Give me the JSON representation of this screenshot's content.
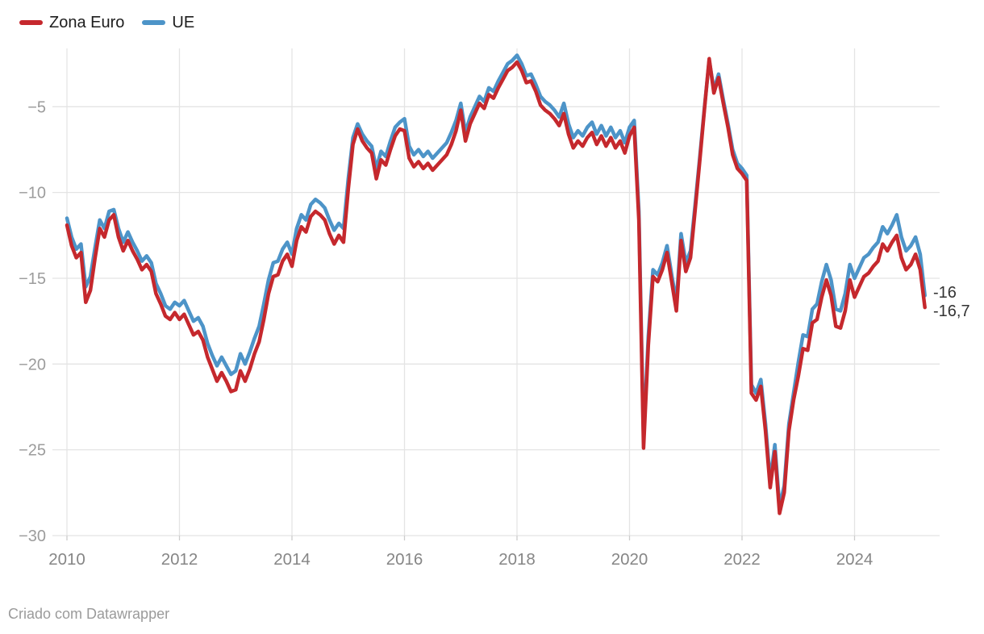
{
  "legend": {
    "items": [
      {
        "label": "Zona Euro",
        "color": "#c5282d"
      },
      {
        "label": "UE",
        "color": "#4d94c8"
      }
    ]
  },
  "attribution": "Criado com Datawrapper",
  "colors": {
    "background": "#ffffff",
    "gridline": "#e4e4e4",
    "axis_tick": "#cccccc",
    "y_tick_label": "#9c9c9c",
    "x_tick_label": "#868686",
    "end_label": "#333333",
    "series_zona_euro": "#c5282d",
    "series_ue": "#4d94c8"
  },
  "chart_data": {
    "type": "line",
    "title": "",
    "xlabel": "",
    "ylabel": "",
    "x_start": "2010-01",
    "x_end": "2025-04",
    "x_frequency": "monthly",
    "grid": "on",
    "legend_position": "top-left",
    "ylim": [
      -30,
      -1.6
    ],
    "y_ticks": [
      {
        "value": -5,
        "label": "−5"
      },
      {
        "value": -10,
        "label": "−10"
      },
      {
        "value": -15,
        "label": "−15"
      },
      {
        "value": -20,
        "label": "−20"
      },
      {
        "value": -25,
        "label": "−25"
      },
      {
        "value": -30,
        "label": "−30"
      }
    ],
    "x_ticks": [
      {
        "year": 2010,
        "label": "2010"
      },
      {
        "year": 2012,
        "label": "2012"
      },
      {
        "year": 2014,
        "label": "2014"
      },
      {
        "year": 2016,
        "label": "2016"
      },
      {
        "year": 2018,
        "label": "2018"
      },
      {
        "year": 2020,
        "label": "2020"
      },
      {
        "year": 2022,
        "label": "2022"
      },
      {
        "year": 2024,
        "label": "2024"
      }
    ],
    "series": [
      {
        "name": "Zona Euro",
        "color": "#c5282d",
        "end_label": "-16,7",
        "last_value": -16.7,
        "values": [
          -11.9,
          -13.1,
          -13.8,
          -13.5,
          -16.4,
          -15.7,
          -13.8,
          -12.1,
          -12.6,
          -11.6,
          -11.3,
          -12.6,
          -13.4,
          -12.8,
          -13.4,
          -13.9,
          -14.5,
          -14.2,
          -14.6,
          -15.9,
          -16.5,
          -17.2,
          -17.4,
          -17.0,
          -17.4,
          -17.1,
          -17.7,
          -18.3,
          -18.1,
          -18.6,
          -19.6,
          -20.3,
          -21.0,
          -20.5,
          -21.0,
          -21.6,
          -21.5,
          -20.4,
          -21.0,
          -20.3,
          -19.4,
          -18.7,
          -17.4,
          -15.9,
          -14.9,
          -14.8,
          -14.0,
          -13.6,
          -14.3,
          -12.8,
          -12.0,
          -12.3,
          -11.4,
          -11.1,
          -11.3,
          -11.6,
          -12.4,
          -13.0,
          -12.5,
          -12.9,
          -9.8,
          -7.2,
          -6.3,
          -7.0,
          -7.4,
          -7.7,
          -9.2,
          -8.1,
          -8.4,
          -7.5,
          -6.7,
          -6.3,
          -6.4,
          -8.0,
          -8.5,
          -8.2,
          -8.6,
          -8.3,
          -8.7,
          -8.4,
          -8.1,
          -7.8,
          -7.2,
          -6.4,
          -5.2,
          -7.0,
          -6.0,
          -5.4,
          -4.8,
          -5.1,
          -4.3,
          -4.5,
          -3.9,
          -3.4,
          -2.9,
          -2.7,
          -2.4,
          -2.9,
          -3.6,
          -3.5,
          -4.1,
          -4.9,
          -5.2,
          -5.4,
          -5.7,
          -6.1,
          -5.4,
          -6.6,
          -7.4,
          -7.0,
          -7.3,
          -6.8,
          -6.5,
          -7.2,
          -6.7,
          -7.3,
          -6.8,
          -7.4,
          -7.0,
          -7.7,
          -6.7,
          -6.2,
          -11.6,
          -24.9,
          -18.9,
          -14.9,
          -15.2,
          -14.5,
          -13.5,
          -15.2,
          -16.9,
          -12.8,
          -14.6,
          -13.8,
          -11.0,
          -8.1,
          -5.1,
          -2.2,
          -4.2,
          -3.3,
          -4.8,
          -6.2,
          -7.8,
          -8.6,
          -8.9,
          -9.3,
          -21.7,
          -22.1,
          -21.3,
          -23.9,
          -27.2,
          -25.1,
          -28.7,
          -27.5,
          -23.9,
          -22.1,
          -20.7,
          -19.1,
          -19.2,
          -17.6,
          -17.4,
          -16.1,
          -15.1,
          -16.0,
          -17.8,
          -17.9,
          -16.9,
          -15.1,
          -16.1,
          -15.5,
          -14.9,
          -14.7,
          -14.3,
          -14.0,
          -13.0,
          -13.4,
          -12.9,
          -12.5,
          -13.8,
          -14.5,
          -14.2,
          -13.6,
          -14.5,
          -16.7
        ]
      },
      {
        "name": "UE",
        "color": "#4d94c8",
        "end_label": "-16",
        "last_value": -16.0,
        "values": [
          -11.5,
          -12.6,
          -13.3,
          -13.0,
          -15.5,
          -14.9,
          -13.2,
          -11.6,
          -12.1,
          -11.1,
          -11.0,
          -12.1,
          -12.9,
          -12.3,
          -12.9,
          -13.4,
          -14.0,
          -13.7,
          -14.1,
          -15.3,
          -15.9,
          -16.6,
          -16.8,
          -16.4,
          -16.6,
          -16.3,
          -16.9,
          -17.5,
          -17.3,
          -17.8,
          -18.8,
          -19.5,
          -20.1,
          -19.6,
          -20.1,
          -20.6,
          -20.4,
          -19.4,
          -20.0,
          -19.3,
          -18.5,
          -17.8,
          -16.5,
          -15.1,
          -14.1,
          -14.0,
          -13.3,
          -12.9,
          -13.6,
          -12.1,
          -11.3,
          -11.6,
          -10.7,
          -10.4,
          -10.6,
          -10.9,
          -11.6,
          -12.2,
          -11.8,
          -12.1,
          -9.2,
          -6.8,
          -6.0,
          -6.6,
          -7.0,
          -7.3,
          -8.6,
          -7.6,
          -7.9,
          -7.0,
          -6.2,
          -5.9,
          -5.7,
          -7.3,
          -7.8,
          -7.5,
          -7.9,
          -7.6,
          -8.0,
          -7.7,
          -7.4,
          -7.1,
          -6.5,
          -5.8,
          -4.8,
          -6.5,
          -5.6,
          -5.0,
          -4.4,
          -4.7,
          -3.9,
          -4.1,
          -3.5,
          -3.0,
          -2.5,
          -2.3,
          -2.0,
          -2.5,
          -3.2,
          -3.1,
          -3.7,
          -4.4,
          -4.7,
          -4.9,
          -5.2,
          -5.6,
          -4.8,
          -6.0,
          -6.8,
          -6.4,
          -6.7,
          -6.2,
          -5.9,
          -6.6,
          -6.1,
          -6.7,
          -6.2,
          -6.8,
          -6.4,
          -7.1,
          -6.2,
          -5.8,
          -11.1,
          -24.3,
          -18.4,
          -14.5,
          -14.8,
          -14.1,
          -13.1,
          -14.8,
          -16.4,
          -12.4,
          -14.1,
          -13.4,
          -10.7,
          -7.9,
          -5.0,
          -2.3,
          -4.0,
          -3.1,
          -4.6,
          -6.0,
          -7.5,
          -8.3,
          -8.6,
          -9.0,
          -21.2,
          -21.7,
          -20.9,
          -23.5,
          -26.8,
          -24.7,
          -28.3,
          -27.1,
          -23.5,
          -21.7,
          -19.9,
          -18.3,
          -18.4,
          -16.8,
          -16.5,
          -15.2,
          -14.2,
          -15.1,
          -16.8,
          -16.9,
          -15.9,
          -14.2,
          -15.0,
          -14.4,
          -13.8,
          -13.6,
          -13.2,
          -12.9,
          -12.0,
          -12.4,
          -11.9,
          -11.3,
          -12.6,
          -13.4,
          -13.1,
          -12.6,
          -13.6,
          -16.0
        ]
      }
    ]
  }
}
